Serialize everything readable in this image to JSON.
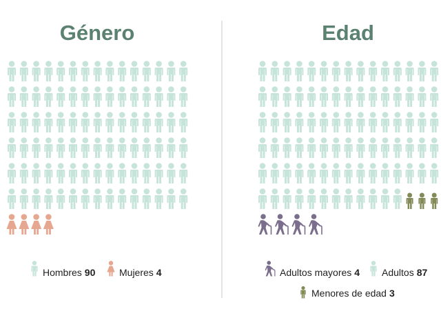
{
  "chart_data": [
    {
      "type": "pictogram",
      "title": "Género",
      "series": [
        {
          "name": "Hombres",
          "color": "#c6e4d9",
          "value": 90
        },
        {
          "name": "Mujeres",
          "color": "#e5a78f",
          "value": 4
        }
      ]
    },
    {
      "type": "pictogram",
      "title": "Edad",
      "series": [
        {
          "name": "Adultos mayores",
          "color": "#7b6e8c",
          "value": 4
        },
        {
          "name": "Adultos",
          "color": "#c6e4d9",
          "value": 87
        },
        {
          "name": "Menores de edad",
          "color": "#838a57",
          "value": 3
        }
      ]
    }
  ]
}
